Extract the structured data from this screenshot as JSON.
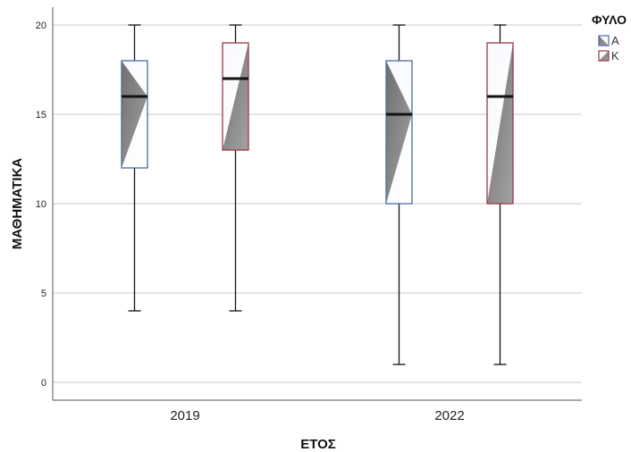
{
  "chart_data": {
    "type": "boxplot",
    "xlabel": "ΕΤΟΣ",
    "ylabel": "ΜΑΘΗΜΑΤΙΚΑ",
    "ylim": [
      -1,
      21
    ],
    "yticks": [
      0,
      5,
      10,
      15,
      20
    ],
    "grid": true,
    "categories": [
      "2019",
      "2022"
    ],
    "legend": {
      "title": "ΦΥΛΟ",
      "position": "top-right"
    },
    "series": [
      {
        "name": "Α",
        "color": "#4a6aa6",
        "boxes": [
          {
            "category": "2019",
            "min": 4,
            "q1": 12,
            "median": 16,
            "q3": 18,
            "max": 20
          },
          {
            "category": "2022",
            "min": 1,
            "q1": 10,
            "median": 15,
            "q3": 18,
            "max": 20
          }
        ]
      },
      {
        "name": "Κ",
        "color": "#9a3a44",
        "boxes": [
          {
            "category": "2019",
            "min": 4,
            "q1": 13,
            "median": 17,
            "q3": 19,
            "max": 20
          },
          {
            "category": "2022",
            "min": 1,
            "q1": 10,
            "median": 16,
            "q3": 19,
            "max": 20
          }
        ]
      }
    ]
  }
}
